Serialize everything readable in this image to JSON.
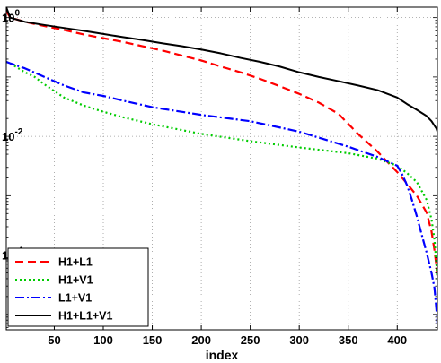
{
  "chart_data": {
    "type": "line",
    "title": "",
    "xlabel": "index",
    "ylabel": "",
    "x_ticks": [
      50,
      100,
      150,
      200,
      250,
      300,
      350,
      400
    ],
    "x_tick_labels": [
      "50",
      "100",
      "150",
      "200",
      "250",
      "300",
      "350",
      "400"
    ],
    "y_ticks": [
      0.0001,
      0.01,
      1
    ],
    "y_tick_labels": [
      {
        "base": "10",
        "exp": "-4"
      },
      {
        "base": "10",
        "exp": "-2"
      },
      {
        "base": "10",
        "exp": "0"
      }
    ],
    "xlim": [
      1,
      441
    ],
    "ylim": [
      5.5e-06,
      1.5
    ],
    "y_scale": "log",
    "grid": true,
    "grid_style": "dotted",
    "legend_position": "bottom-left",
    "series": [
      {
        "name": "H1+L1",
        "color": "#ff0000",
        "dash": "9,5",
        "x": [
          1,
          5,
          20,
          40,
          60,
          80,
          100,
          120,
          140,
          160,
          180,
          200,
          220,
          240,
          260,
          280,
          300,
          320,
          340,
          360,
          380,
          400,
          410,
          420,
          430,
          435,
          438,
          440,
          441
        ],
        "y": [
          1.3,
          1.0,
          0.85,
          0.72,
          0.62,
          0.52,
          0.45,
          0.39,
          0.33,
          0.28,
          0.23,
          0.19,
          0.15,
          0.12,
          0.093,
          0.07,
          0.052,
          0.037,
          0.024,
          0.011,
          0.0055,
          0.0025,
          0.0016,
          0.001,
          0.00052,
          0.00025,
          0.00012,
          6.5e-05,
          4.2e-05
        ]
      },
      {
        "name": "H1+V1",
        "color": "#00cc00",
        "dash": "2,3",
        "x": [
          1,
          5,
          20,
          30,
          40,
          50,
          60,
          80,
          100,
          120,
          150,
          200,
          250,
          300,
          350,
          380,
          400,
          410,
          420,
          430,
          435,
          438,
          440,
          441
        ],
        "y": [
          0.18,
          0.17,
          0.12,
          0.1,
          0.075,
          0.058,
          0.045,
          0.033,
          0.026,
          0.021,
          0.016,
          0.011,
          0.0083,
          0.0065,
          0.0052,
          0.0042,
          0.0032,
          0.0024,
          0.0017,
          0.00085,
          0.0004,
          0.00018,
          7e-05,
          3.5e-05
        ]
      },
      {
        "name": "L1+V1",
        "color": "#0000ff",
        "dash": "10,3,2,3",
        "x": [
          1,
          5,
          20,
          40,
          60,
          80,
          100,
          120,
          150,
          200,
          250,
          300,
          350,
          380,
          400,
          405,
          410,
          415,
          420,
          425,
          430,
          435,
          438,
          440,
          441
        ],
        "y": [
          0.18,
          0.17,
          0.14,
          0.1,
          0.072,
          0.055,
          0.048,
          0.04,
          0.031,
          0.023,
          0.018,
          0.012,
          0.0067,
          0.0045,
          0.0032,
          0.0023,
          0.0015,
          0.00085,
          0.00045,
          0.00022,
          0.00011,
          5e-05,
          2.8e-05,
          1.2e-05,
          7e-06
        ]
      },
      {
        "name": "H1+L1+V1",
        "color": "#000000",
        "dash": "",
        "x": [
          1,
          5,
          20,
          40,
          60,
          80,
          100,
          120,
          140,
          160,
          180,
          200,
          220,
          240,
          260,
          280,
          300,
          320,
          340,
          360,
          380,
          400,
          410,
          420,
          430,
          435,
          440,
          441
        ],
        "y": [
          1.5,
          1.0,
          0.85,
          0.75,
          0.67,
          0.6,
          0.53,
          0.47,
          0.42,
          0.37,
          0.33,
          0.29,
          0.25,
          0.21,
          0.18,
          0.15,
          0.12,
          0.1,
          0.085,
          0.072,
          0.06,
          0.045,
          0.035,
          0.028,
          0.022,
          0.018,
          0.0135,
          0.012
        ]
      }
    ]
  }
}
